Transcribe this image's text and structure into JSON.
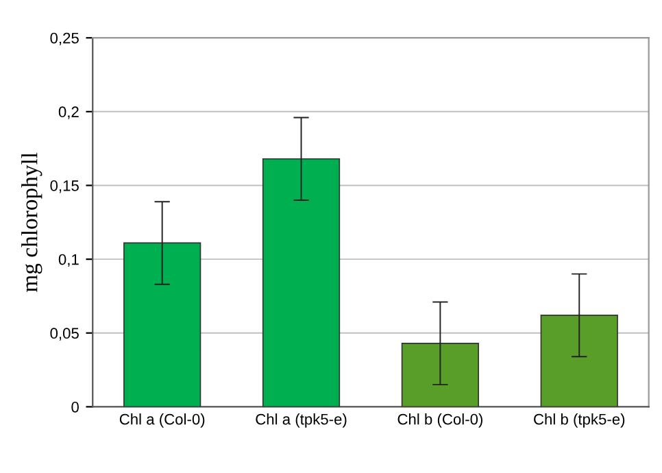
{
  "chart_data": {
    "type": "bar",
    "ylabel": "mg chlorophyll",
    "categories": [
      "Chl a (Col-0)",
      "Chl a (tpk5-e)",
      "Chl b (Col-0)",
      "Chl b (tpk5-e)"
    ],
    "values": [
      0.111,
      0.168,
      0.043,
      0.062
    ],
    "errors": [
      0.028,
      0.028,
      0.028,
      0.028
    ],
    "colors": [
      "#00b050",
      "#00b050",
      "#5a9e2a",
      "#5a9e2a"
    ],
    "ylim": [
      0,
      0.25
    ],
    "yticks": [
      {
        "value": 0,
        "label": "0"
      },
      {
        "value": 0.05,
        "label": "0,05"
      },
      {
        "value": 0.1,
        "label": "0,1"
      },
      {
        "value": 0.15,
        "label": "0,15"
      },
      {
        "value": 0.2,
        "label": "0,2"
      },
      {
        "value": 0.25,
        "label": "0,25"
      }
    ],
    "grid": "y"
  }
}
